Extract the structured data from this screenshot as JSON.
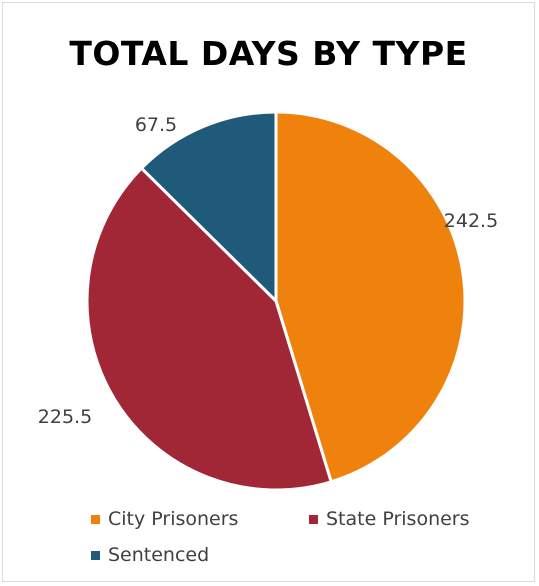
{
  "chart_data": {
    "type": "pie",
    "title": "TOTAL DAYS BY TYPE",
    "categories": [
      "City Prisoners",
      "State Prisoners",
      "Sentenced"
    ],
    "values": [
      242.5,
      225.5,
      67.5
    ],
    "data_labels": [
      "242.5",
      "225.5",
      "67.5"
    ],
    "colors": [
      "#ef820d",
      "#a12737",
      "#1f5a7a"
    ],
    "slice_border_color": "#ffffff",
    "start_angle": "12 o'clock, clockwise",
    "legend_position": "bottom"
  }
}
